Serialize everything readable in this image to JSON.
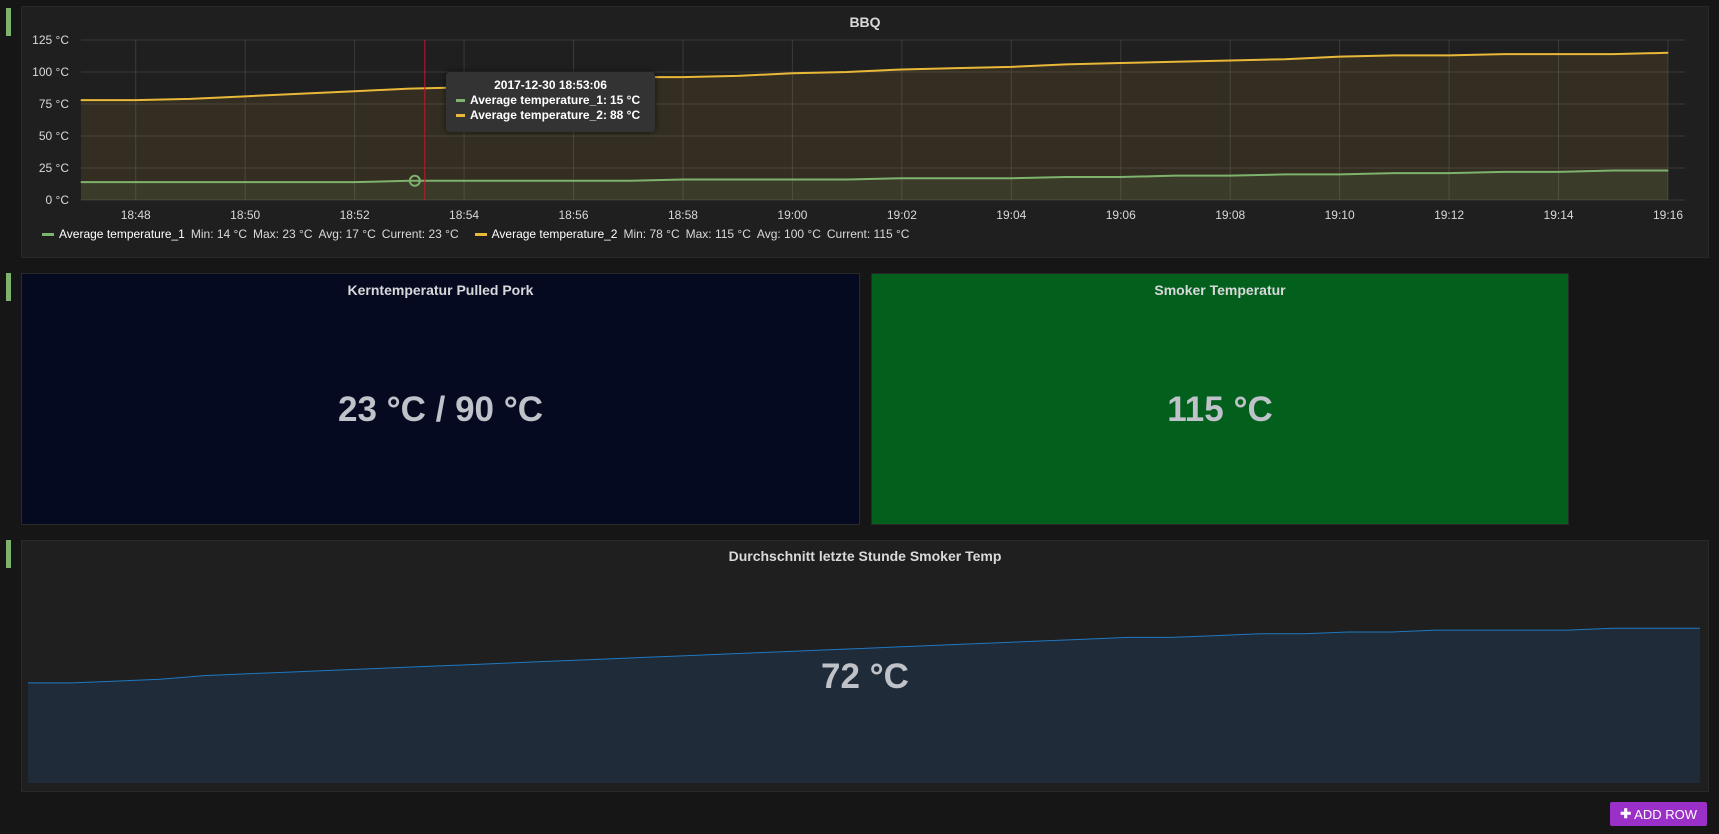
{
  "bbq": {
    "title": "BBQ",
    "y_ticks": [
      "125 °C",
      "100 °C",
      "75 °C",
      "50 °C",
      "25 °C",
      "0 °C"
    ],
    "x_ticks": [
      "18:48",
      "18:50",
      "18:52",
      "18:54",
      "18:56",
      "18:58",
      "19:00",
      "19:02",
      "19:04",
      "19:06",
      "19:08",
      "19:10",
      "19:12",
      "19:14",
      "19:16"
    ],
    "legend": [
      {
        "name": "Average temperature_1",
        "min": "Min: 14 °C",
        "max": "Max: 23 °C",
        "avg": "Avg: 17 °C",
        "current": "Current: 23 °C"
      },
      {
        "name": "Average temperature_2",
        "min": "Min: 78 °C",
        "max": "Max: 115 °C",
        "avg": "Avg: 100 °C",
        "current": "Current: 115 °C"
      }
    ],
    "tooltip": {
      "time": "2017-12-30 18:53:06",
      "rows": [
        {
          "name": "Average temperature_1:",
          "value": "15 °C"
        },
        {
          "name": "Average temperature_2:",
          "value": "88 °C"
        }
      ]
    },
    "colors": {
      "series1": "#7eb26d",
      "series2": "#eab839"
    }
  },
  "chart_data": {
    "type": "line",
    "x": [
      "18:47",
      "18:48",
      "18:49",
      "18:50",
      "18:51",
      "18:52",
      "18:53",
      "18:54",
      "18:55",
      "18:56",
      "18:57",
      "18:58",
      "18:59",
      "19:00",
      "19:01",
      "19:02",
      "19:03",
      "19:04",
      "19:05",
      "19:06",
      "19:07",
      "19:08",
      "19:09",
      "19:10",
      "19:11",
      "19:12",
      "19:13",
      "19:14",
      "19:15",
      "19:16"
    ],
    "series": [
      {
        "name": "Average temperature_1",
        "values": [
          14,
          14,
          14,
          14,
          14,
          14,
          15,
          15,
          15,
          15,
          15,
          16,
          16,
          16,
          16,
          17,
          17,
          17,
          18,
          18,
          19,
          19,
          20,
          20,
          21,
          21,
          22,
          22,
          23,
          23
        ]
      },
      {
        "name": "Average temperature_2",
        "values": [
          78,
          78,
          79,
          81,
          83,
          85,
          87,
          88,
          91,
          94,
          96,
          96,
          97,
          99,
          100,
          102,
          103,
          104,
          106,
          107,
          108,
          109,
          110,
          112,
          113,
          113,
          114,
          114,
          114,
          115
        ]
      }
    ],
    "xlabel": "",
    "ylabel": "",
    "ylim": [
      0,
      125
    ]
  },
  "kern": {
    "title": "Kerntemperatur Pulled Pork",
    "value": "23 °C / 90 °C",
    "bg": "#060a21"
  },
  "smoker": {
    "title": "Smoker Temperatur",
    "value": "115 °C",
    "bg": "#035f1c"
  },
  "avg": {
    "title": "Durchschnitt letzte Stunde Smoker Temp",
    "value": "72 °C",
    "sparkline": [
      55,
      55,
      56,
      57,
      59,
      60,
      61,
      62,
      63,
      64,
      65,
      66,
      67,
      68,
      69,
      70,
      71,
      72,
      73,
      74,
      75,
      76,
      77,
      78,
      79,
      80,
      80,
      81,
      82,
      82,
      83,
      83,
      84,
      84,
      84,
      84,
      85,
      85,
      85
    ]
  },
  "toolbar": {
    "add_row_label": "ADD ROW"
  }
}
